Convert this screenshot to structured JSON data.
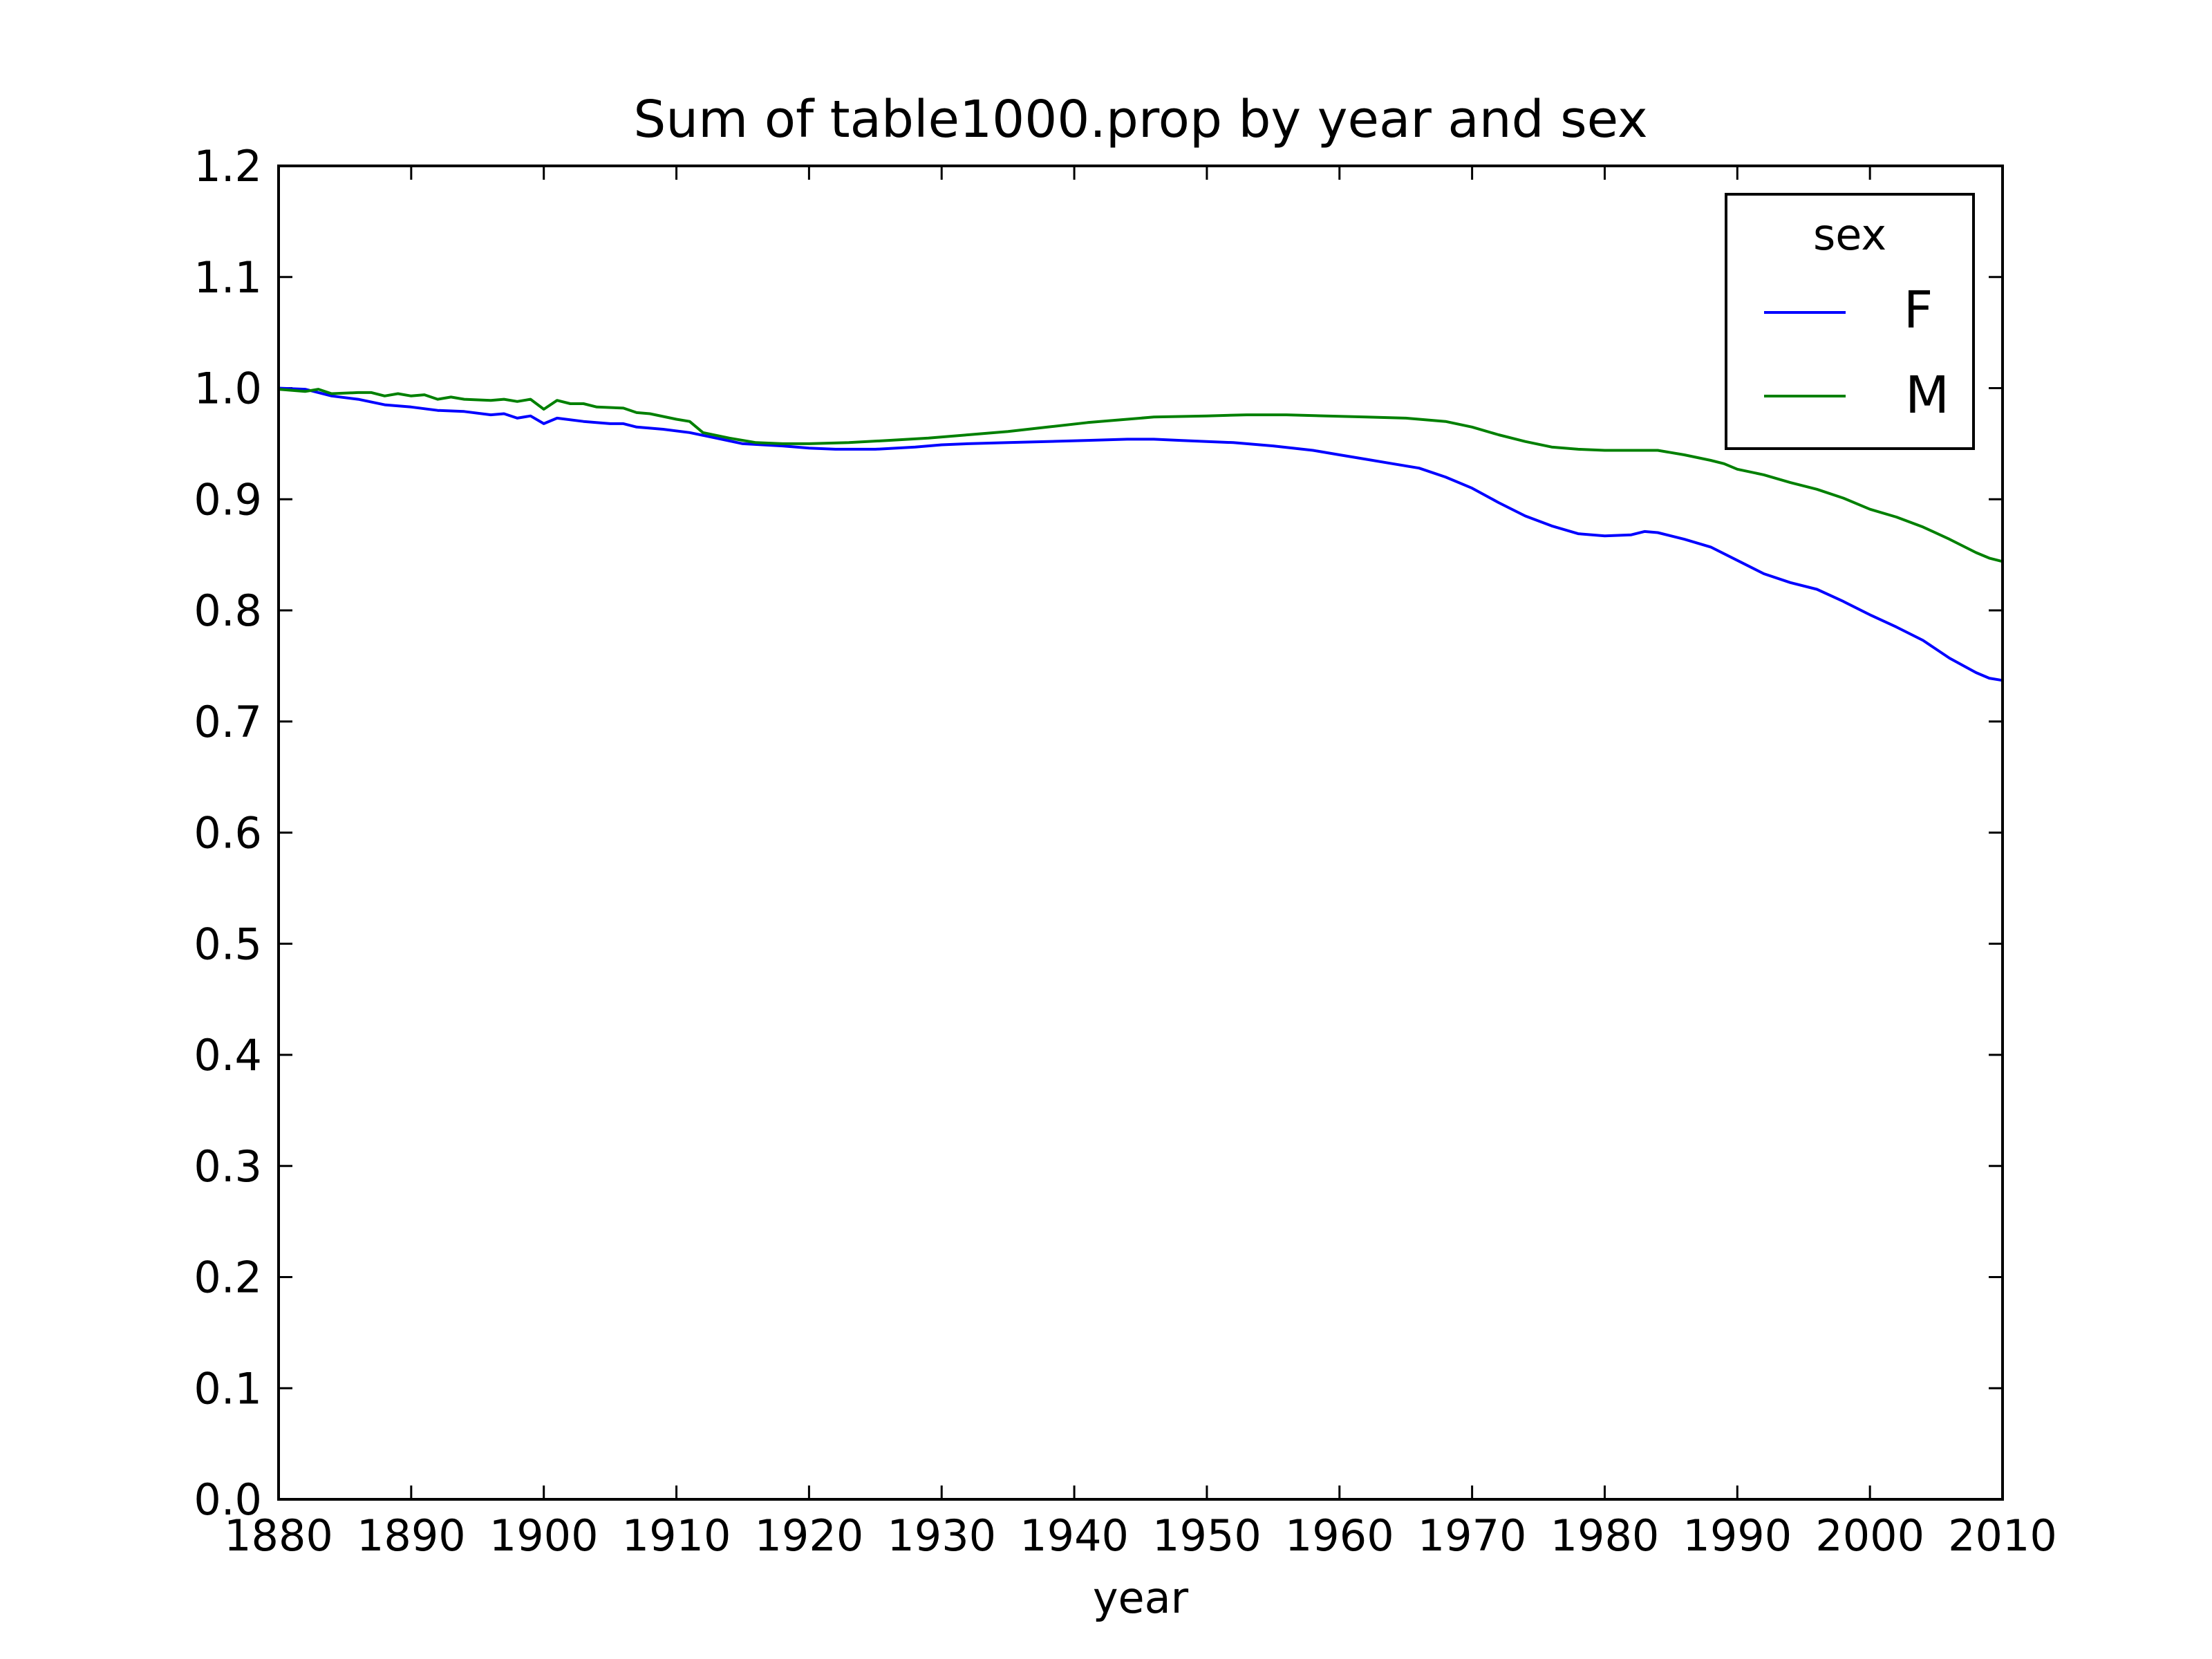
{
  "chart_data": {
    "type": "line",
    "title": "Sum of table1000.prop by year and sex",
    "xlabel": "year",
    "ylabel": "",
    "xlim": [
      1880,
      2010
    ],
    "ylim": [
      0.0,
      1.2
    ],
    "xticks": [
      "1880",
      "1890",
      "1900",
      "1910",
      "1920",
      "1930",
      "1940",
      "1950",
      "1960",
      "1970",
      "1980",
      "1990",
      "2000",
      "2010"
    ],
    "yticks": [
      "0.0",
      "0.1",
      "0.2",
      "0.3",
      "0.4",
      "0.5",
      "0.6",
      "0.7",
      "0.8",
      "0.9",
      "1.0",
      "1.1",
      "1.2"
    ],
    "grid": false,
    "legend": {
      "title": "sex",
      "position": "top-right"
    },
    "series": [
      {
        "name": "F",
        "color": "#0000ff",
        "points": [
          [
            1880,
            1.0
          ],
          [
            1882,
            0.999
          ],
          [
            1884,
            0.993
          ],
          [
            1886,
            0.99
          ],
          [
            1888,
            0.985
          ],
          [
            1890,
            0.983
          ],
          [
            1892,
            0.98
          ],
          [
            1894,
            0.979
          ],
          [
            1896,
            0.976
          ],
          [
            1897,
            0.977
          ],
          [
            1898,
            0.973
          ],
          [
            1899,
            0.975
          ],
          [
            1900,
            0.968
          ],
          [
            1901,
            0.973
          ],
          [
            1903,
            0.97
          ],
          [
            1905,
            0.968
          ],
          [
            1906,
            0.968
          ],
          [
            1907,
            0.965
          ],
          [
            1909,
            0.963
          ],
          [
            1911,
            0.96
          ],
          [
            1913,
            0.955
          ],
          [
            1915,
            0.95
          ],
          [
            1918,
            0.948
          ],
          [
            1920,
            0.946
          ],
          [
            1922,
            0.945
          ],
          [
            1925,
            0.945
          ],
          [
            1928,
            0.947
          ],
          [
            1930,
            0.949
          ],
          [
            1932,
            0.95
          ],
          [
            1935,
            0.951
          ],
          [
            1938,
            0.952
          ],
          [
            1941,
            0.953
          ],
          [
            1944,
            0.954
          ],
          [
            1946,
            0.954
          ],
          [
            1948,
            0.953
          ],
          [
            1950,
            0.952
          ],
          [
            1952,
            0.951
          ],
          [
            1955,
            0.948
          ],
          [
            1958,
            0.944
          ],
          [
            1960,
            0.94
          ],
          [
            1962,
            0.936
          ],
          [
            1964,
            0.932
          ],
          [
            1966,
            0.928
          ],
          [
            1968,
            0.92
          ],
          [
            1970,
            0.91
          ],
          [
            1972,
            0.897
          ],
          [
            1974,
            0.885
          ],
          [
            1976,
            0.876
          ],
          [
            1978,
            0.869
          ],
          [
            1980,
            0.867
          ],
          [
            1982,
            0.868
          ],
          [
            1983,
            0.871
          ],
          [
            1984,
            0.87
          ],
          [
            1986,
            0.864
          ],
          [
            1988,
            0.857
          ],
          [
            1990,
            0.845
          ],
          [
            1992,
            0.833
          ],
          [
            1994,
            0.825
          ],
          [
            1996,
            0.819
          ],
          [
            1998,
            0.808
          ],
          [
            2000,
            0.796
          ],
          [
            2002,
            0.785
          ],
          [
            2004,
            0.773
          ],
          [
            2006,
            0.757
          ],
          [
            2008,
            0.744
          ],
          [
            2009,
            0.739
          ],
          [
            2010,
            0.737
          ]
        ]
      },
      {
        "name": "M",
        "color": "#008000",
        "points": [
          [
            1880,
            0.999
          ],
          [
            1882,
            0.997
          ],
          [
            1883,
            0.999
          ],
          [
            1884,
            0.995
          ],
          [
            1886,
            0.996
          ],
          [
            1887,
            0.996
          ],
          [
            1888,
            0.993
          ],
          [
            1889,
            0.995
          ],
          [
            1890,
            0.993
          ],
          [
            1891,
            0.994
          ],
          [
            1892,
            0.99
          ],
          [
            1893,
            0.992
          ],
          [
            1894,
            0.99
          ],
          [
            1896,
            0.989
          ],
          [
            1897,
            0.99
          ],
          [
            1898,
            0.988
          ],
          [
            1899,
            0.99
          ],
          [
            1900,
            0.981
          ],
          [
            1901,
            0.989
          ],
          [
            1902,
            0.986
          ],
          [
            1903,
            0.986
          ],
          [
            1904,
            0.983
          ],
          [
            1906,
            0.982
          ],
          [
            1907,
            0.978
          ],
          [
            1908,
            0.977
          ],
          [
            1910,
            0.972
          ],
          [
            1911,
            0.97
          ],
          [
            1912,
            0.96
          ],
          [
            1914,
            0.955
          ],
          [
            1916,
            0.951
          ],
          [
            1918,
            0.95
          ],
          [
            1920,
            0.95
          ],
          [
            1923,
            0.951
          ],
          [
            1926,
            0.953
          ],
          [
            1929,
            0.955
          ],
          [
            1932,
            0.958
          ],
          [
            1935,
            0.961
          ],
          [
            1938,
            0.965
          ],
          [
            1941,
            0.969
          ],
          [
            1944,
            0.972
          ],
          [
            1946,
            0.974
          ],
          [
            1950,
            0.975
          ],
          [
            1953,
            0.976
          ],
          [
            1956,
            0.976
          ],
          [
            1959,
            0.975
          ],
          [
            1962,
            0.974
          ],
          [
            1965,
            0.973
          ],
          [
            1968,
            0.97
          ],
          [
            1970,
            0.965
          ],
          [
            1972,
            0.958
          ],
          [
            1974,
            0.952
          ],
          [
            1976,
            0.947
          ],
          [
            1978,
            0.945
          ],
          [
            1980,
            0.944
          ],
          [
            1982,
            0.944
          ],
          [
            1984,
            0.944
          ],
          [
            1986,
            0.94
          ],
          [
            1988,
            0.935
          ],
          [
            1989,
            0.932
          ],
          [
            1990,
            0.927
          ],
          [
            1992,
            0.922
          ],
          [
            1994,
            0.915
          ],
          [
            1996,
            0.909
          ],
          [
            1998,
            0.901
          ],
          [
            2000,
            0.891
          ],
          [
            2002,
            0.884
          ],
          [
            2004,
            0.875
          ],
          [
            2006,
            0.864
          ],
          [
            2008,
            0.852
          ],
          [
            2009,
            0.847
          ],
          [
            2010,
            0.844
          ]
        ]
      }
    ]
  }
}
